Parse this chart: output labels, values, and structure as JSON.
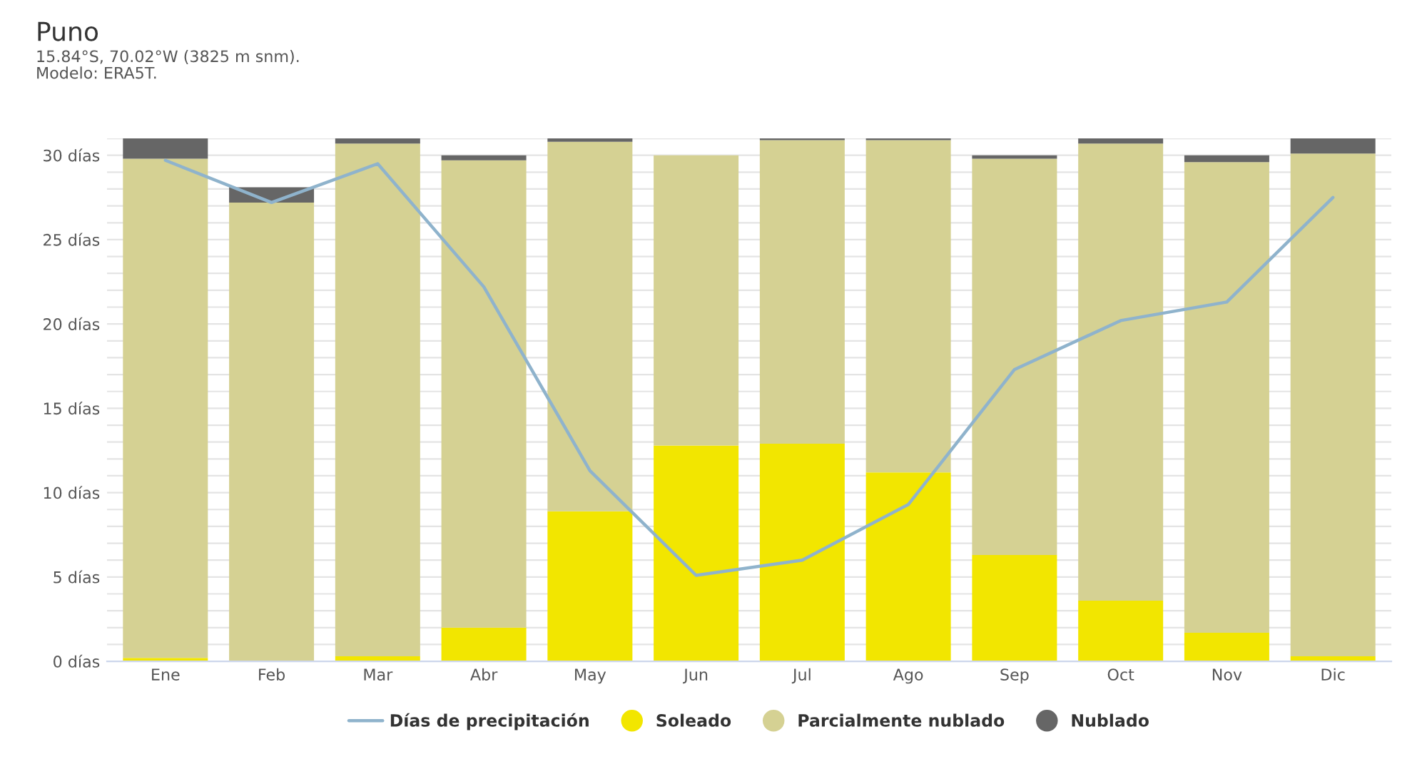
{
  "chart_data": {
    "type": "bar",
    "title": "Puno",
    "subtitle": "15.84°S, 70.02°W (3825 m snm).\nModelo: ERA5T.",
    "stacked": true,
    "categories": [
      "Ene",
      "Feb",
      "Mar",
      "Abr",
      "May",
      "Jun",
      "Jul",
      "Ago",
      "Sep",
      "Oct",
      "Nov",
      "Dic"
    ],
    "series": [
      {
        "name": "Días de precipitación",
        "type": "line",
        "color": "#8fb3cc",
        "values": [
          29.7,
          27.2,
          29.5,
          22.2,
          11.3,
          5.1,
          6.0,
          9.3,
          17.3,
          20.2,
          21.3,
          27.5
        ]
      },
      {
        "name": "Soleado",
        "color": "#f2e600",
        "values": [
          0.2,
          0,
          0.3,
          2.0,
          8.9,
          12.8,
          12.9,
          11.2,
          6.3,
          3.6,
          1.7,
          0.3
        ]
      },
      {
        "name": "Parcialmente nublado",
        "color": "#d5d193",
        "values": [
          29.6,
          27.2,
          30.4,
          27.7,
          21.9,
          17.2,
          18.0,
          19.7,
          23.5,
          27.1,
          27.9,
          29.8
        ]
      },
      {
        "name": "Nublado",
        "color": "#666666",
        "values": [
          1.2,
          0.9,
          0.3,
          0.3,
          0.2,
          0,
          0.1,
          0.1,
          0.2,
          0.3,
          0.4,
          0.9
        ]
      }
    ],
    "ylim": [
      0,
      31
    ],
    "yticks": [
      {
        "value": 0,
        "label": "0 días"
      },
      {
        "value": 1,
        "label": null
      },
      {
        "value": 2,
        "label": null
      },
      {
        "value": 3,
        "label": null
      },
      {
        "value": 4,
        "label": null
      },
      {
        "value": 5,
        "label": "5 días"
      },
      {
        "value": 6,
        "label": null
      },
      {
        "value": 7,
        "label": null
      },
      {
        "value": 8,
        "label": null
      },
      {
        "value": 9,
        "label": null
      },
      {
        "value": 10,
        "label": "10 días"
      },
      {
        "value": 11,
        "label": null
      },
      {
        "value": 12,
        "label": null
      },
      {
        "value": 13,
        "label": null
      },
      {
        "value": 14,
        "label": null
      },
      {
        "value": 15,
        "label": "15 días"
      },
      {
        "value": 16,
        "label": null
      },
      {
        "value": 17,
        "label": null
      },
      {
        "value": 18,
        "label": null
      },
      {
        "value": 19,
        "label": null
      },
      {
        "value": 20,
        "label": "20 días"
      },
      {
        "value": 21,
        "label": null
      },
      {
        "value": 22,
        "label": null
      },
      {
        "value": 23,
        "label": null
      },
      {
        "value": 24,
        "label": null
      },
      {
        "value": 25,
        "label": "25 días"
      },
      {
        "value": 26,
        "label": null
      },
      {
        "value": 27,
        "label": null
      },
      {
        "value": 28,
        "label": null
      },
      {
        "value": 29,
        "label": null
      },
      {
        "value": 30,
        "label": "30 días"
      },
      {
        "value": 31,
        "label": null
      }
    ],
    "grid": "y",
    "legend": "bottom"
  }
}
